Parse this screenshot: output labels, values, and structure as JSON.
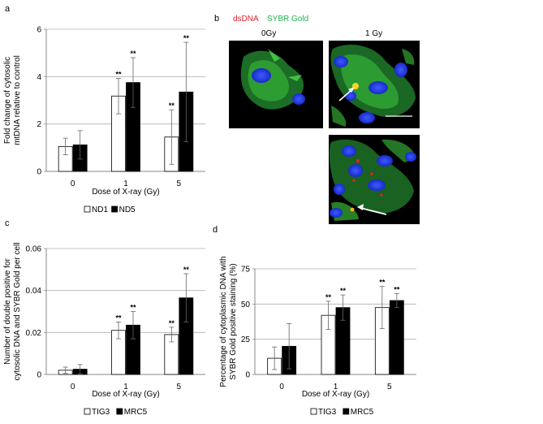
{
  "panels": {
    "a": "a",
    "b": "b",
    "c": "c",
    "d": "d"
  },
  "microscopy": {
    "stain_red": "dsDNA",
    "stain_green": "SYBR Gold",
    "label_0gy": "0Gy",
    "label_1gy": "1 Gy",
    "red_color": "#e8202a",
    "green_color": "#22b14c"
  },
  "chart_data": [
    {
      "id": "a",
      "type": "bar",
      "categories": [
        "0",
        "1",
        "5"
      ],
      "xlabel": "Dose of X-ray (Gy)",
      "ylabel": "Fold change of cytosolic mtDNA relative to control",
      "ylim": [
        0,
        6
      ],
      "yticks": [
        "0",
        "2",
        "4",
        "6"
      ],
      "grid": true,
      "legend": "bottom",
      "series": [
        {
          "name": "ND1",
          "fill": "white",
          "values": [
            1.05,
            3.18,
            1.45
          ],
          "err": [
            0.35,
            0.75,
            1.15
          ],
          "sig": [
            "",
            "**",
            "**"
          ]
        },
        {
          "name": "ND5",
          "fill": "black",
          "values": [
            1.12,
            3.75,
            3.35
          ],
          "err": [
            0.6,
            1.05,
            2.1
          ],
          "sig": [
            "",
            "**",
            "**"
          ]
        }
      ]
    },
    {
      "id": "c",
      "type": "bar",
      "categories": [
        "0",
        "1",
        "5"
      ],
      "xlabel": "Dose of X-ray (Gy)",
      "ylabel": "Number of double positive for cytosolic DNA and SYBR Gold per cell",
      "ylim": [
        0,
        0.06
      ],
      "yticks": [
        "0",
        "0.02",
        "0.04",
        "0.06"
      ],
      "grid": true,
      "legend": "bottom",
      "series": [
        {
          "name": "TIG3",
          "fill": "white",
          "values": [
            0.002,
            0.021,
            0.019
          ],
          "err": [
            0.0015,
            0.004,
            0.0035
          ],
          "sig": [
            "",
            "**",
            "**"
          ]
        },
        {
          "name": "MRC5",
          "fill": "black",
          "values": [
            0.0025,
            0.0235,
            0.0365
          ],
          "err": [
            0.0022,
            0.0065,
            0.0115
          ],
          "sig": [
            "",
            "**",
            "**"
          ]
        }
      ]
    },
    {
      "id": "d",
      "type": "bar",
      "categories": [
        "0",
        "1",
        "5"
      ],
      "xlabel": "Dose of X-ray (Gy)",
      "ylabel": "Percentage of cytoplasmic DNA with SYBR Gold positive staining (%)",
      "ylim": [
        0,
        75
      ],
      "yticks": [
        "0",
        "25",
        "50",
        "75"
      ],
      "grid": true,
      "legend": "bottom",
      "series": [
        {
          "name": "TIG3",
          "fill": "white",
          "values": [
            11.5,
            42,
            47.5
          ],
          "err": [
            8,
            10,
            15
          ],
          "sig": [
            "",
            "**",
            "**"
          ]
        },
        {
          "name": "MRC5",
          "fill": "black",
          "values": [
            20,
            47.5,
            52.5
          ],
          "err": [
            16,
            9,
            5
          ],
          "sig": [
            "",
            "**",
            "**"
          ]
        }
      ]
    }
  ]
}
